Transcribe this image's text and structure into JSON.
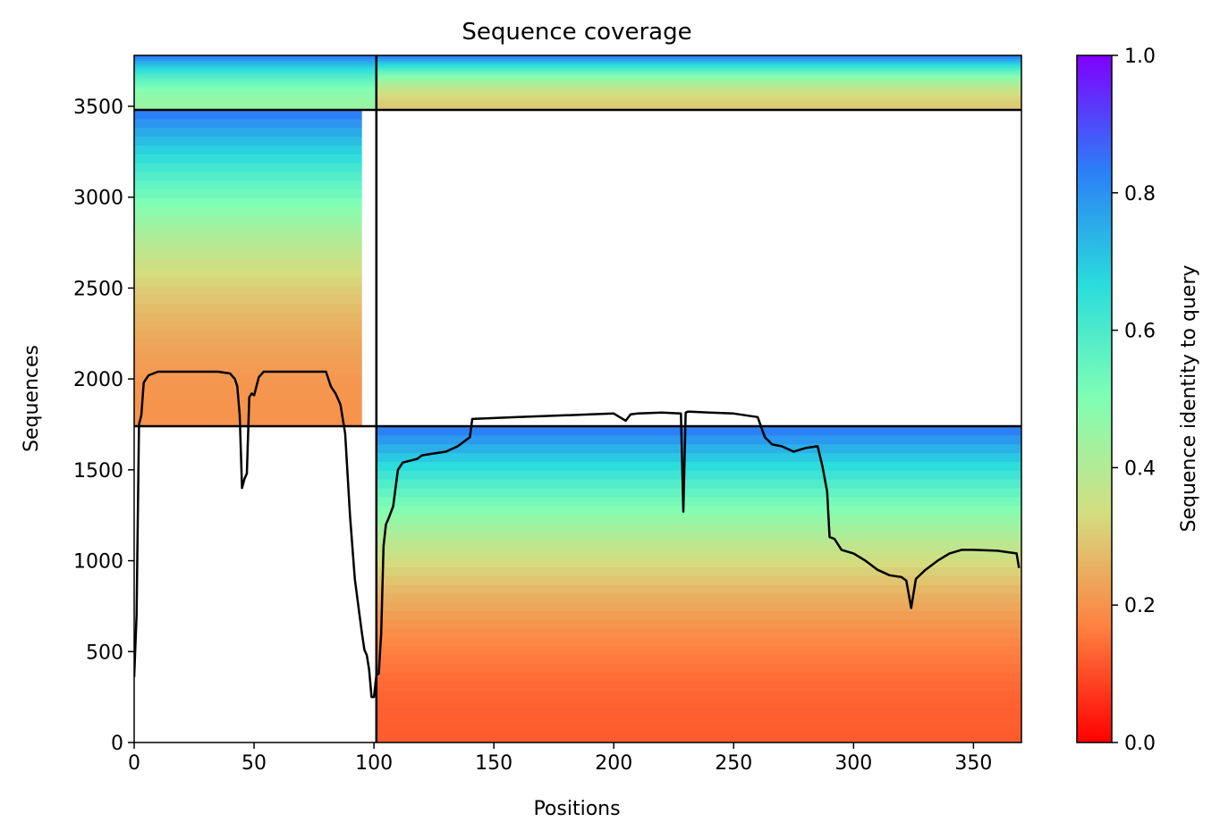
{
  "chart_data": {
    "type": "heatmap",
    "title": "Sequence coverage",
    "xlabel": "Positions",
    "ylabel": "Sequences",
    "xlim": [
      0,
      370
    ],
    "ylim": [
      0,
      3780
    ],
    "xticks": [
      0,
      50,
      100,
      150,
      200,
      250,
      300,
      350
    ],
    "yticks": [
      0,
      500,
      1000,
      1500,
      2000,
      2500,
      3000,
      3500
    ],
    "grid": false,
    "colormap": "rainbow_r",
    "colorbar": {
      "label": "Sequence identity to query",
      "range": [
        0.0,
        1.0
      ],
      "ticks": [
        "0.0",
        "0.2",
        "0.4",
        "0.6",
        "0.8",
        "1.0"
      ],
      "stops": [
        "#ff0000",
        "#ff8040",
        "#d4dd80",
        "#80ffb4",
        "#2adcdc",
        "#2c7ef7",
        "#8000ff"
      ]
    },
    "separators": {
      "vertical_at_position": 101,
      "horizontal_at_sequences": [
        1740,
        3480
      ]
    },
    "blocks": [
      {
        "x": [
          0,
          101
        ],
        "y": [
          1740,
          3480
        ],
        "identity_bottom": 0.2,
        "identity_top": 0.85,
        "coverage_right": 95
      },
      {
        "x": [
          101,
          370
        ],
        "y": [
          3480,
          3780
        ],
        "identity_bottom": 0.3,
        "identity_top": 0.85,
        "coverage_right": 370
      },
      {
        "x": [
          0,
          101
        ],
        "y": [
          3480,
          3780
        ],
        "identity_bottom": 0.45,
        "identity_top": 0.85,
        "coverage_right": 101
      },
      {
        "x": [
          101,
          370
        ],
        "y": [
          0,
          1740
        ],
        "identity_bottom": 0.12,
        "identity_top": 0.85,
        "coverage_right": 370
      }
    ],
    "coverage_line": {
      "x": [
        0,
        1,
        2,
        3,
        4,
        5,
        6,
        8,
        10,
        15,
        20,
        25,
        30,
        35,
        40,
        42,
        43,
        44,
        45,
        46,
        47,
        48,
        49,
        50,
        52,
        54,
        56,
        60,
        70,
        80,
        82,
        84,
        86,
        88,
        90,
        92,
        94,
        95,
        96,
        97,
        98,
        99,
        100,
        101,
        102,
        103,
        104,
        105,
        106,
        108,
        110,
        112,
        115,
        118,
        120,
        125,
        130,
        135,
        140,
        141,
        150,
        160,
        170,
        180,
        190,
        200,
        205,
        207,
        210,
        220,
        228,
        229,
        230,
        231,
        232,
        240,
        250,
        260,
        263,
        266,
        270,
        275,
        280,
        285,
        287,
        289,
        290,
        292,
        295,
        300,
        305,
        310,
        315,
        320,
        322,
        324,
        326,
        330,
        335,
        340,
        345,
        350,
        360,
        368,
        369
      ],
      "y": [
        360,
        700,
        1750,
        1800,
        1980,
        2000,
        2020,
        2030,
        2040,
        2040,
        2040,
        2040,
        2040,
        2040,
        2030,
        2000,
        1960,
        1800,
        1400,
        1450,
        1480,
        1900,
        1920,
        1910,
        2010,
        2040,
        2040,
        2040,
        2040,
        2040,
        1960,
        1920,
        1860,
        1700,
        1250,
        900,
        700,
        600,
        510,
        480,
        400,
        250,
        250,
        370,
        380,
        600,
        1080,
        1200,
        1230,
        1300,
        1500,
        1540,
        1550,
        1560,
        1580,
        1590,
        1600,
        1630,
        1680,
        1780,
        1785,
        1790,
        1795,
        1800,
        1805,
        1810,
        1770,
        1805,
        1810,
        1815,
        1810,
        1270,
        1815,
        1820,
        1820,
        1815,
        1810,
        1790,
        1680,
        1640,
        1630,
        1600,
        1620,
        1630,
        1520,
        1380,
        1130,
        1120,
        1060,
        1040,
        1000,
        950,
        920,
        910,
        890,
        740,
        900,
        950,
        1000,
        1040,
        1060,
        1060,
        1055,
        1040,
        960
      ]
    }
  }
}
